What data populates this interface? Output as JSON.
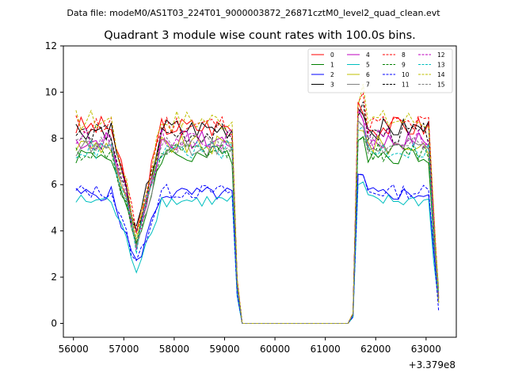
{
  "chart_data": {
    "type": "line",
    "suptitle": "Data file: modeM0/AS1T03_224T01_9000003872_26871cztM0_level2_quad_clean.evt",
    "title": "Quadrant 3 module wise count rates with 100.0s bins.",
    "xlabel": "",
    "ylabel": "",
    "x_offset_label": "+3.379e8",
    "xlim": [
      55800,
      63600
    ],
    "ylim": [
      -0.6,
      12
    ],
    "xticks": [
      56000,
      57000,
      58000,
      59000,
      60000,
      61000,
      62000,
      63000
    ],
    "yticks": [
      0,
      2,
      4,
      6,
      8,
      10,
      12
    ],
    "grid": false,
    "legend_position": "top-right",
    "legend_columns": 4,
    "series": [
      {
        "name": "0",
        "color": "#ff0000",
        "dash": "solid",
        "base": 8.5
      },
      {
        "name": "1",
        "color": "#008000",
        "dash": "solid",
        "base": 7.3
      },
      {
        "name": "2",
        "color": "#0000ff",
        "dash": "solid",
        "base": 5.6
      },
      {
        "name": "3",
        "color": "#000000",
        "dash": "solid",
        "base": 8.4
      },
      {
        "name": "4",
        "color": "#bf00bf",
        "dash": "solid",
        "base": 7.9
      },
      {
        "name": "5",
        "color": "#00bfbf",
        "dash": "solid",
        "base": 5.3
      },
      {
        "name": "6",
        "color": "#bfbf00",
        "dash": "solid",
        "base": 7.7
      },
      {
        "name": "7",
        "color": "#808080",
        "dash": "solid",
        "base": 7.6
      },
      {
        "name": "8",
        "color": "#ff0000",
        "dash": "dashed",
        "base": 8.6
      },
      {
        "name": "9",
        "color": "#008000",
        "dash": "dashed",
        "base": 7.4
      },
      {
        "name": "10",
        "color": "#0000ff",
        "dash": "dashed",
        "base": 5.7
      },
      {
        "name": "11",
        "color": "#000000",
        "dash": "dashed",
        "base": 8.2
      },
      {
        "name": "12",
        "color": "#bf00bf",
        "dash": "dashed",
        "base": 8.0
      },
      {
        "name": "13",
        "color": "#00bfbf",
        "dash": "dashed",
        "base": 7.5
      },
      {
        "name": "14",
        "color": "#bfbf00",
        "dash": "dashed",
        "base": 8.8
      },
      {
        "name": "15",
        "color": "#808080",
        "dash": "dashed",
        "base": 7.7
      }
    ]
  }
}
